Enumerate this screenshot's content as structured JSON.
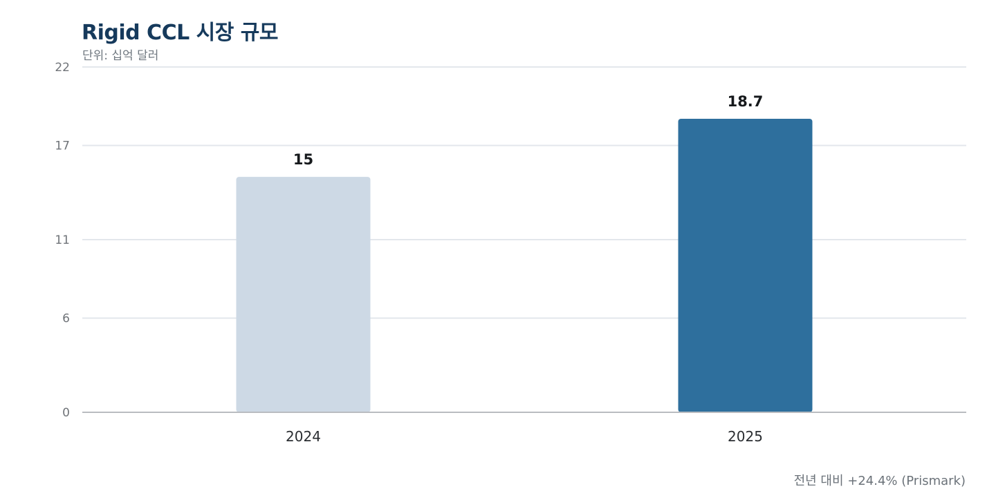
{
  "chart_data": {
    "type": "bar",
    "title": "Rigid CCL 시장 규모",
    "subtitle": "단위: 십억 달러",
    "categories": [
      "2024",
      "2025"
    ],
    "values": [
      15,
      18.7
    ],
    "value_labels": [
      "15",
      "18.7"
    ],
    "yticks": [
      "0",
      "6",
      "11",
      "17",
      "22"
    ],
    "ylim": [
      0,
      22
    ],
    "grid": true,
    "bar_colors": [
      "#cdd9e5",
      "#2e6f9d"
    ],
    "footnote": "전년 대비 +24.4% (Prismark)"
  }
}
